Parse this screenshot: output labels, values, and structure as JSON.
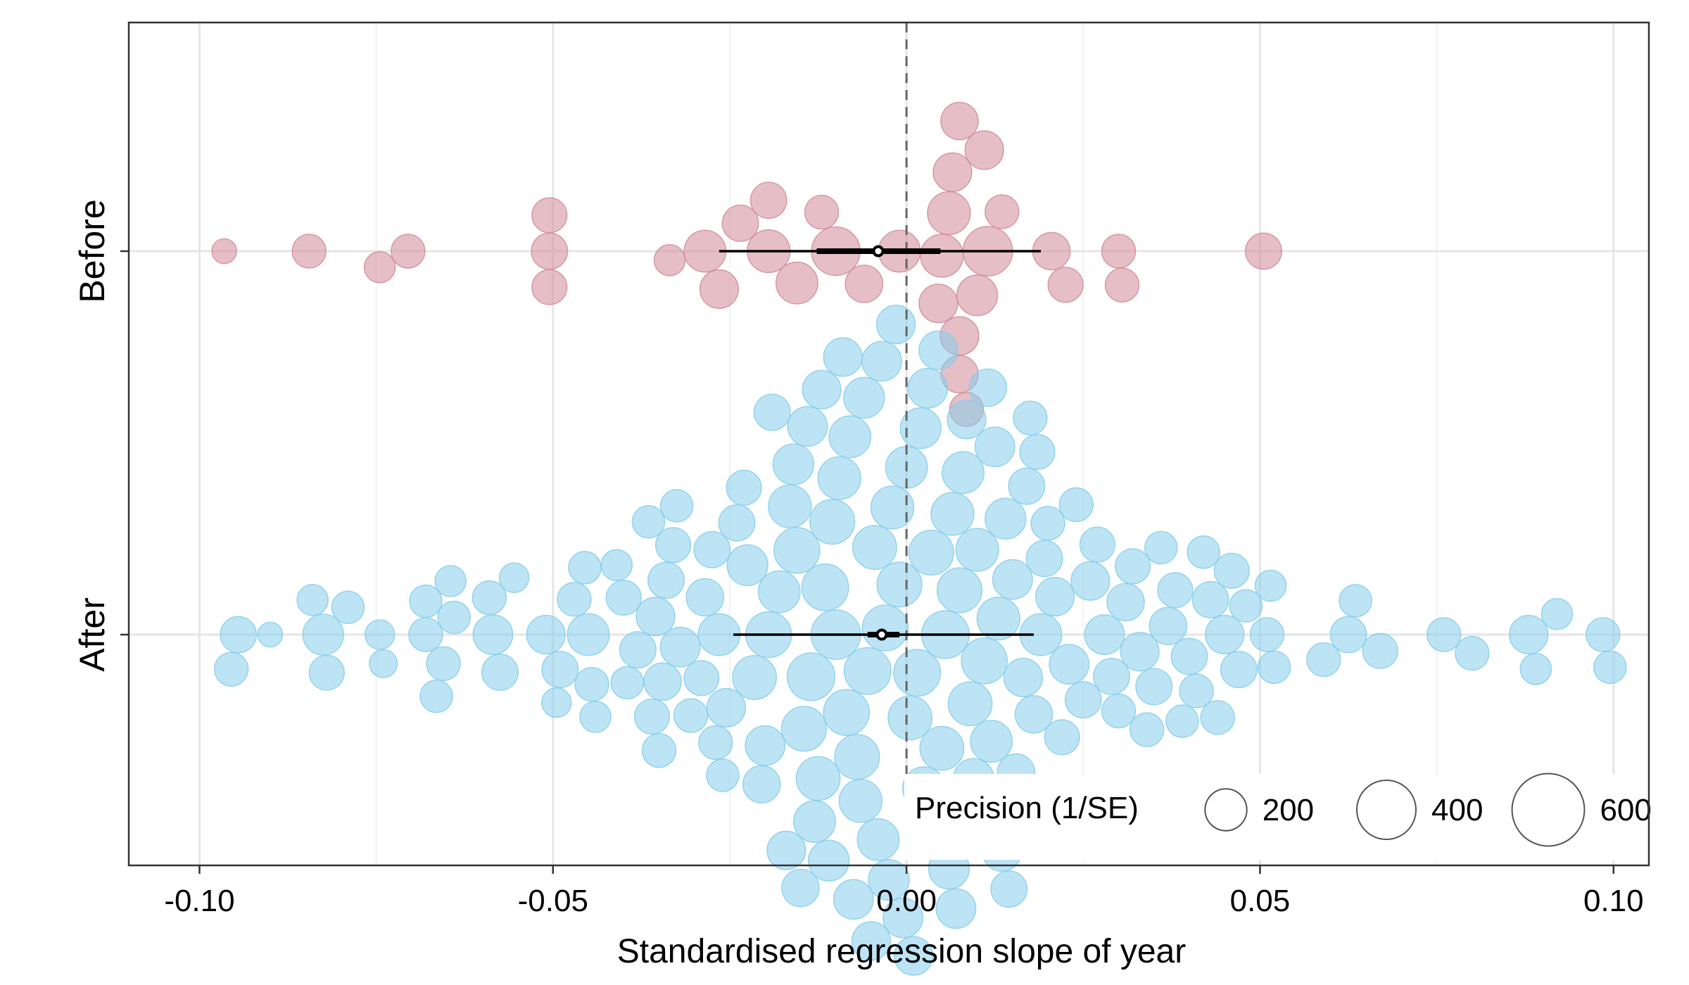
{
  "chart_data": {
    "type": "scatter",
    "subtype": "beeswarm",
    "xlabel": "Standardised regression slope of year",
    "ylabel": "",
    "xlim": [
      -0.11,
      0.105
    ],
    "xticks": [
      -0.1,
      -0.05,
      0.0,
      0.05,
      0.1
    ],
    "xtick_labels": [
      "-0.10",
      "-0.05",
      "0.00",
      "0.05",
      "0.10"
    ],
    "categories": [
      "Before",
      "After"
    ],
    "grid": true,
    "reference_line": {
      "x": 0,
      "style": "dashed"
    },
    "legend": {
      "title": "Precision (1/SE)",
      "position": "bottom-right",
      "entries": [
        {
          "label": "200",
          "value": 200
        },
        {
          "label": "400",
          "value": 400
        },
        {
          "label": "600",
          "value": 600
        }
      ]
    },
    "series": [
      {
        "category": "Before",
        "color": "#d28b98",
        "interval_95": [
          -0.0265,
          0.019
        ],
        "interval_50": [
          -0.0127,
          0.0048
        ],
        "estimate": -0.004,
        "points": [
          [
            -0.0965,
            70
          ],
          [
            -0.0845,
            130
          ],
          [
            -0.0745,
            110
          ],
          [
            -0.0705,
            130
          ],
          [
            -0.0505,
            150
          ],
          [
            -0.0505,
            140
          ],
          [
            -0.0505,
            140
          ],
          [
            -0.0335,
            110
          ],
          [
            -0.0285,
            200
          ],
          [
            -0.0265,
            170
          ],
          [
            -0.0235,
            150
          ],
          [
            -0.0195,
            150
          ],
          [
            -0.0195,
            210
          ],
          [
            -0.0155,
            200
          ],
          [
            -0.012,
            130
          ],
          [
            -0.01,
            270
          ],
          [
            -0.006,
            160
          ],
          [
            -0.001,
            200
          ],
          [
            0.0045,
            170
          ],
          [
            0.005,
            210
          ],
          [
            0.006,
            210
          ],
          [
            0.0065,
            170
          ],
          [
            0.0075,
            160
          ],
          [
            0.0075,
            160
          ],
          [
            0.0075,
            170
          ],
          [
            0.0085,
            130
          ],
          [
            0.01,
            190
          ],
          [
            0.011,
            170
          ],
          [
            0.0115,
            280
          ],
          [
            0.0135,
            130
          ],
          [
            0.0205,
            160
          ],
          [
            0.0225,
            140
          ],
          [
            0.03,
            130
          ],
          [
            0.0305,
            130
          ],
          [
            0.0505,
            150
          ]
        ]
      },
      {
        "category": "After",
        "color": "#87ceeb",
        "interval_95": [
          -0.0245,
          0.018
        ],
        "interval_50": [
          -0.0055,
          -0.001
        ],
        "estimate": -0.0035,
        "points": [
          [
            -0.0955,
            130
          ],
          [
            -0.0945,
            150
          ],
          [
            -0.09,
            70
          ],
          [
            -0.084,
            110
          ],
          [
            -0.0825,
            190
          ],
          [
            -0.082,
            140
          ],
          [
            -0.079,
            120
          ],
          [
            -0.0745,
            100
          ],
          [
            -0.074,
            90
          ],
          [
            -0.068,
            130
          ],
          [
            -0.068,
            120
          ],
          [
            -0.0665,
            120
          ],
          [
            -0.0655,
            130
          ],
          [
            -0.064,
            120
          ],
          [
            -0.0645,
            110
          ],
          [
            -0.059,
            130
          ],
          [
            -0.0585,
            180
          ],
          [
            -0.0575,
            150
          ],
          [
            -0.0555,
            100
          ],
          [
            -0.051,
            170
          ],
          [
            -0.049,
            150
          ],
          [
            -0.0495,
            100
          ],
          [
            -0.047,
            130
          ],
          [
            -0.045,
            200
          ],
          [
            -0.0455,
            120
          ],
          [
            -0.044,
            110
          ],
          [
            -0.0445,
            130
          ],
          [
            -0.041,
            110
          ],
          [
            -0.04,
            140
          ],
          [
            -0.0395,
            120
          ],
          [
            -0.038,
            150
          ],
          [
            -0.0365,
            120
          ],
          [
            -0.036,
            140
          ],
          [
            -0.0355,
            170
          ],
          [
            -0.035,
            130
          ],
          [
            -0.0345,
            160
          ],
          [
            -0.034,
            150
          ],
          [
            -0.033,
            140
          ],
          [
            -0.0325,
            120
          ],
          [
            -0.032,
            180
          ],
          [
            -0.0305,
            130
          ],
          [
            -0.029,
            140
          ],
          [
            -0.0285,
            160
          ],
          [
            -0.0275,
            150
          ],
          [
            -0.027,
            130
          ],
          [
            -0.0265,
            200
          ],
          [
            -0.026,
            120
          ],
          [
            -0.0255,
            170
          ],
          [
            -0.024,
            150
          ],
          [
            -0.023,
            140
          ],
          [
            -0.0225,
            190
          ],
          [
            -0.0215,
            220
          ],
          [
            -0.0205,
            160
          ],
          [
            -0.02,
            180
          ],
          [
            -0.0195,
            240
          ],
          [
            -0.019,
            150
          ],
          [
            -0.018,
            200
          ],
          [
            -0.017,
            170
          ],
          [
            -0.0165,
            210
          ],
          [
            -0.016,
            190
          ],
          [
            -0.0155,
            240
          ],
          [
            -0.015,
            160
          ],
          [
            -0.0145,
            230
          ],
          [
            -0.014,
            180
          ],
          [
            -0.0135,
            260
          ],
          [
            -0.013,
            200
          ],
          [
            -0.0125,
            220
          ],
          [
            -0.012,
            170
          ],
          [
            -0.0115,
            250
          ],
          [
            -0.011,
            190
          ],
          [
            -0.0105,
            230
          ],
          [
            -0.01,
            280
          ],
          [
            -0.0095,
            210
          ],
          [
            -0.009,
            170
          ],
          [
            -0.0085,
            240
          ],
          [
            -0.008,
            200
          ],
          [
            -0.0075,
            180
          ],
          [
            -0.007,
            230
          ],
          [
            -0.0065,
            210
          ],
          [
            -0.006,
            190
          ],
          [
            -0.0055,
            250
          ],
          [
            -0.005,
            170
          ],
          [
            -0.0045,
            220
          ],
          [
            -0.004,
            200
          ],
          [
            -0.0035,
            180
          ],
          [
            -0.003,
            240
          ],
          [
            -0.0025,
            190
          ],
          [
            -0.002,
            210
          ],
          [
            -0.0015,
            170
          ],
          [
            -0.001,
            230
          ],
          [
            -0.0005,
            180
          ],
          [
            0.0,
            200
          ],
          [
            0.0005,
            220
          ],
          [
            0.001,
            170
          ],
          [
            0.0015,
            250
          ],
          [
            0.002,
            190
          ],
          [
            0.0025,
            210
          ],
          [
            0.003,
            180
          ],
          [
            0.0035,
            230
          ],
          [
            0.004,
            200
          ],
          [
            0.0045,
            170
          ],
          [
            0.005,
            220
          ],
          [
            0.0055,
            260
          ],
          [
            0.006,
            190
          ],
          [
            0.0065,
            210
          ],
          [
            0.007,
            180
          ],
          [
            0.0075,
            230
          ],
          [
            0.008,
            200
          ],
          [
            0.0085,
            170
          ],
          [
            0.009,
            220
          ],
          [
            0.0095,
            190
          ],
          [
            0.01,
            210
          ],
          [
            0.0105,
            180
          ],
          [
            0.011,
            240
          ],
          [
            0.0115,
            160
          ],
          [
            0.012,
            200
          ],
          [
            0.0125,
            180
          ],
          [
            0.013,
            210
          ],
          [
            0.0135,
            170
          ],
          [
            0.014,
            190
          ],
          [
            0.0145,
            150
          ],
          [
            0.015,
            180
          ],
          [
            0.0155,
            160
          ],
          [
            0.016,
            140
          ],
          [
            0.0165,
            170
          ],
          [
            0.017,
            150
          ],
          [
            0.0175,
            130
          ],
          [
            0.018,
            160
          ],
          [
            0.0185,
            140
          ],
          [
            0.019,
            200
          ],
          [
            0.0195,
            150
          ],
          [
            0.02,
            130
          ],
          [
            0.021,
            170
          ],
          [
            0.022,
            140
          ],
          [
            0.023,
            180
          ],
          [
            0.024,
            130
          ],
          [
            0.025,
            150
          ],
          [
            0.026,
            170
          ],
          [
            0.027,
            140
          ],
          [
            0.028,
            180
          ],
          [
            0.029,
            150
          ],
          [
            0.03,
            130
          ],
          [
            0.031,
            160
          ],
          [
            0.032,
            140
          ],
          [
            0.033,
            170
          ],
          [
            0.034,
            130
          ],
          [
            0.035,
            150
          ],
          [
            0.036,
            120
          ],
          [
            0.037,
            160
          ],
          [
            0.038,
            140
          ],
          [
            0.039,
            120
          ],
          [
            0.04,
            150
          ],
          [
            0.041,
            130
          ],
          [
            0.042,
            120
          ],
          [
            0.043,
            150
          ],
          [
            0.044,
            130
          ],
          [
            0.045,
            170
          ],
          [
            0.046,
            140
          ],
          [
            0.047,
            150
          ],
          [
            0.048,
            120
          ],
          [
            0.051,
            130
          ],
          [
            0.0515,
            110
          ],
          [
            0.052,
            120
          ],
          [
            0.059,
            130
          ],
          [
            0.0625,
            150
          ],
          [
            0.0635,
            120
          ],
          [
            0.067,
            140
          ],
          [
            0.076,
            130
          ],
          [
            0.08,
            130
          ],
          [
            0.088,
            170
          ],
          [
            0.089,
            110
          ],
          [
            0.092,
            110
          ],
          [
            0.0985,
            130
          ],
          [
            0.0995,
            120
          ]
        ]
      }
    ]
  }
}
